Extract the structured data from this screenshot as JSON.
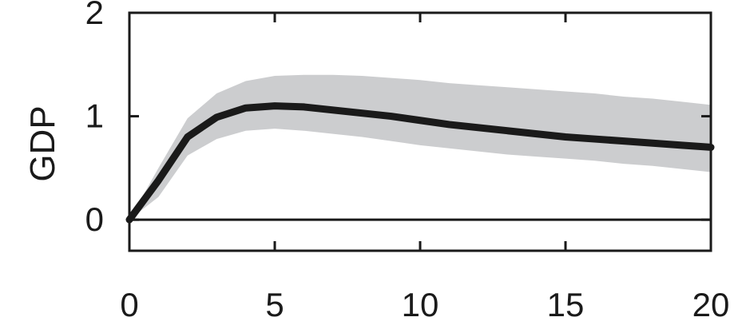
{
  "chart_data": {
    "type": "line",
    "xlabel": "",
    "ylabel": "GDP",
    "xlim": [
      0,
      20
    ],
    "ylim": [
      -0.3,
      2
    ],
    "xticks": [
      0,
      5,
      10,
      15,
      20
    ],
    "yticks": [
      0,
      1,
      2
    ],
    "grid": false,
    "zero_line": true,
    "x": [
      0,
      1,
      2,
      3,
      4,
      5,
      6,
      7,
      8,
      9,
      10,
      11,
      12,
      13,
      14,
      15,
      16,
      17,
      18,
      19,
      20
    ],
    "series": [
      {
        "values": [
          0,
          0.38,
          0.8,
          0.99,
          1.08,
          1.1,
          1.09,
          1.06,
          1.03,
          1.0,
          0.96,
          0.92,
          0.89,
          0.86,
          0.83,
          0.8,
          0.78,
          0.76,
          0.74,
          0.72,
          0.7
        ],
        "color": "#1a1a1a"
      }
    ],
    "band": {
      "lower": [
        0,
        0.22,
        0.62,
        0.78,
        0.86,
        0.88,
        0.86,
        0.83,
        0.8,
        0.76,
        0.72,
        0.69,
        0.66,
        0.63,
        0.61,
        0.59,
        0.57,
        0.54,
        0.52,
        0.49,
        0.46
      ],
      "upper": [
        0,
        0.5,
        0.98,
        1.22,
        1.34,
        1.39,
        1.4,
        1.4,
        1.39,
        1.37,
        1.35,
        1.32,
        1.3,
        1.28,
        1.26,
        1.24,
        1.22,
        1.19,
        1.17,
        1.14,
        1.11
      ],
      "color": "#cccdcf"
    }
  }
}
